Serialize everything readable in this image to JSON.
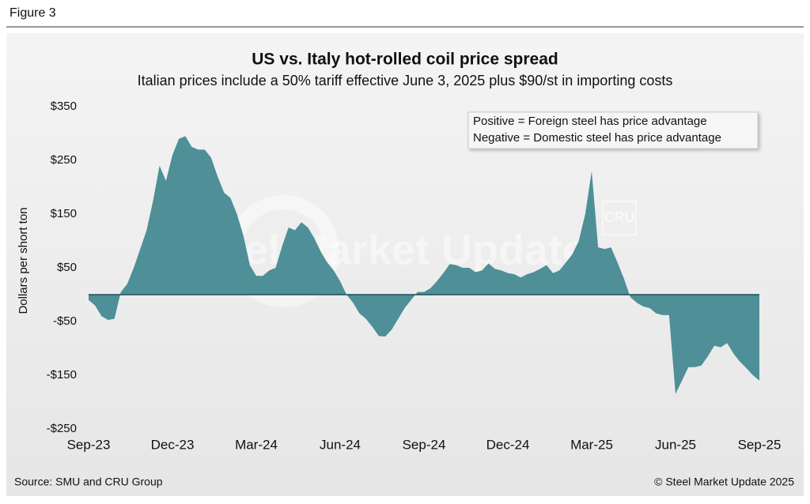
{
  "figure_label": "Figure 3",
  "chart_data": {
    "type": "area",
    "title": "US vs. Italy hot-rolled coil price spread",
    "subtitle": "Italian prices include a 50% tariff effective June 3, 2025 plus $90/st in importing costs",
    "ylabel": "Dollars per short ton",
    "annotations": [
      "Positive = Foreign steel has price advantage",
      "Negative = Domestic steel has price advantage"
    ],
    "watermark": "Steel Market Update",
    "watermark_logo": "CRU",
    "source": "Source: SMU and CRU Group",
    "copyright": "© Steel Market Update 2025",
    "color": "#4e8f98",
    "categories": [
      "Sep-23",
      null,
      null,
      null,
      null,
      null,
      null,
      null,
      null,
      null,
      null,
      null,
      null,
      "Dec-23",
      null,
      null,
      null,
      null,
      null,
      null,
      null,
      null,
      null,
      null,
      null,
      null,
      "Mar-24",
      null,
      null,
      null,
      null,
      null,
      null,
      null,
      null,
      null,
      null,
      null,
      null,
      "Jun-24",
      null,
      null,
      null,
      null,
      null,
      null,
      null,
      null,
      null,
      null,
      null,
      null,
      "Sep-24",
      null,
      null,
      null,
      null,
      null,
      null,
      null,
      null,
      null,
      null,
      null,
      null,
      "Dec-24",
      null,
      null,
      null,
      null,
      null,
      null,
      null,
      null,
      null,
      null,
      null,
      null,
      "Mar-25",
      null,
      null,
      null,
      null,
      null,
      null,
      null,
      null,
      null,
      null,
      null,
      null,
      "Jun-25",
      null,
      null,
      null,
      null,
      null,
      null,
      null,
      null,
      null,
      null,
      null,
      null,
      "Sep-25"
    ],
    "values": [
      -10,
      -20,
      -40,
      -47,
      -45,
      5,
      20,
      50,
      85,
      120,
      175,
      240,
      212,
      260,
      290,
      295,
      275,
      270,
      270,
      255,
      220,
      190,
      180,
      150,
      110,
      55,
      35,
      35,
      45,
      50,
      90,
      125,
      120,
      135,
      125,
      105,
      80,
      60,
      45,
      25,
      0,
      -15,
      -35,
      -45,
      -60,
      -77,
      -78,
      -65,
      -45,
      -25,
      -10,
      5,
      5,
      12,
      25,
      40,
      57,
      55,
      50,
      50,
      42,
      45,
      58,
      48,
      45,
      40,
      38,
      32,
      38,
      42,
      48,
      55,
      40,
      45,
      60,
      75,
      100,
      150,
      230,
      88,
      85,
      88,
      60,
      30,
      -5,
      -15,
      -22,
      -25,
      -35,
      -38,
      -38,
      -185,
      -160,
      -135,
      -135,
      -132,
      -115,
      -95,
      -98,
      -90,
      -110,
      -125,
      -137,
      -150,
      -160
    ],
    "ylim": [
      -250,
      350
    ],
    "yticks": [
      {
        "value": 350,
        "label": "$350"
      },
      {
        "value": 250,
        "label": "$250"
      },
      {
        "value": 150,
        "label": "$150"
      },
      {
        "value": 50,
        "label": "$50"
      },
      {
        "value": -50,
        "label": "-$50"
      },
      {
        "value": -150,
        "label": "-$150"
      },
      {
        "value": -250,
        "label": "-$250"
      }
    ],
    "grid": false
  }
}
